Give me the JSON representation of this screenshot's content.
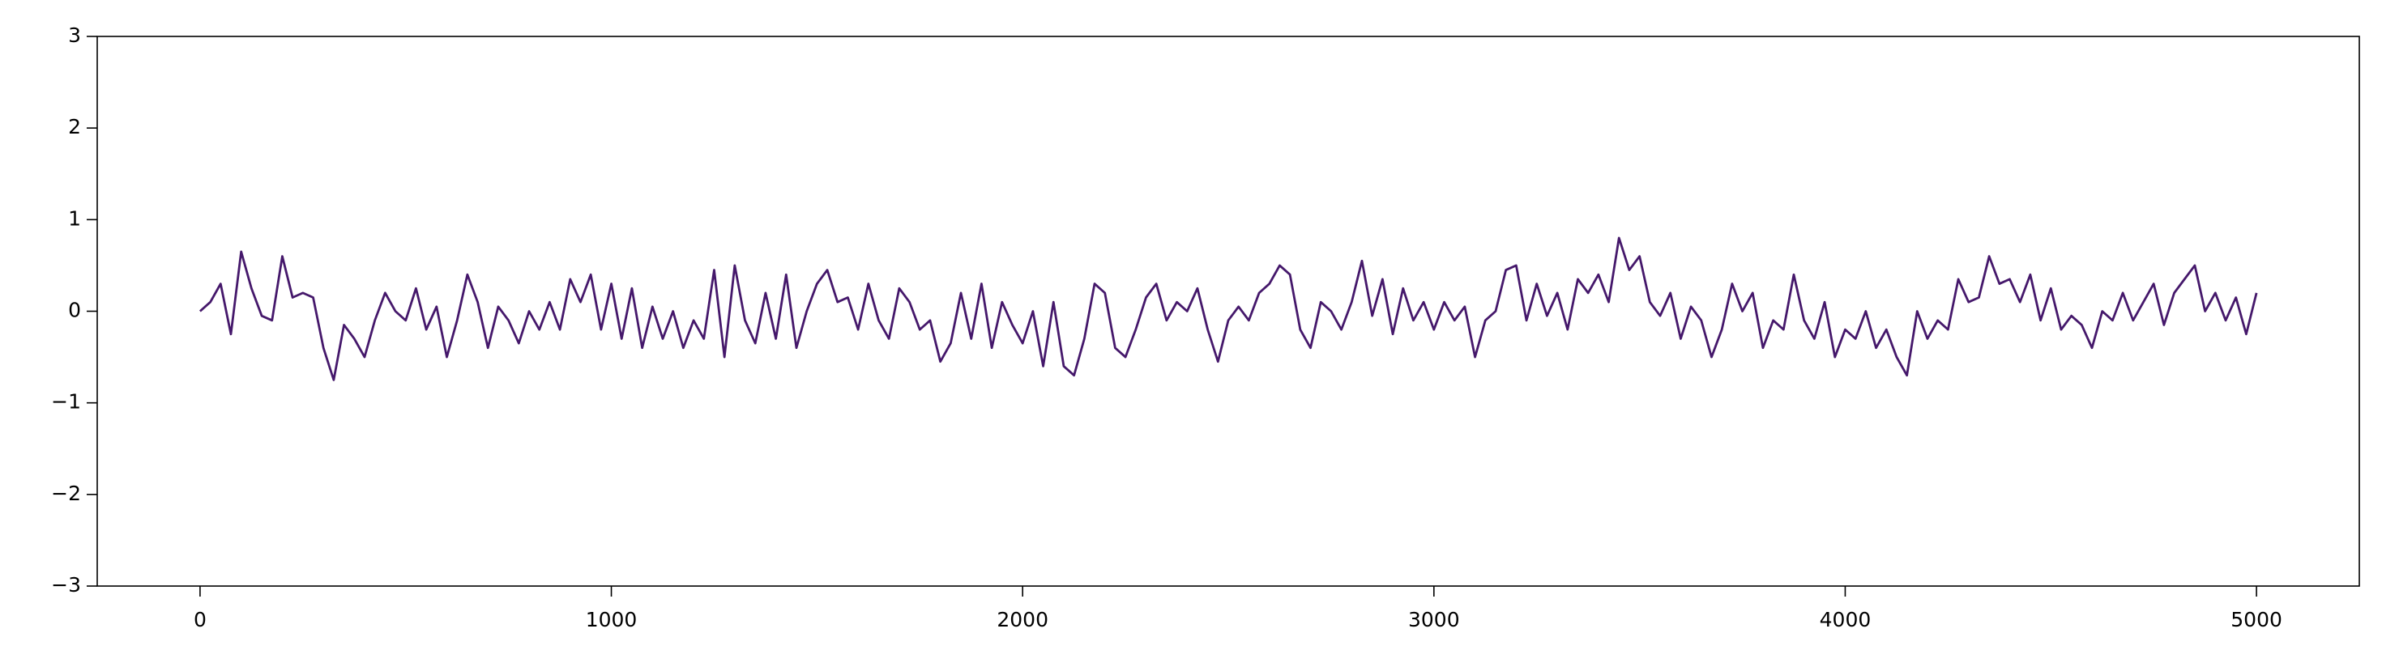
{
  "chart_data": {
    "type": "line",
    "x": [
      0,
      25,
      50,
      75,
      100,
      125,
      150,
      175,
      200,
      225,
      250,
      275,
      300,
      325,
      350,
      375,
      400,
      425,
      450,
      475,
      500,
      525,
      550,
      575,
      600,
      625,
      650,
      675,
      700,
      725,
      750,
      775,
      800,
      825,
      850,
      875,
      900,
      925,
      950,
      975,
      1000,
      1025,
      1050,
      1075,
      1100,
      1125,
      1150,
      1175,
      1200,
      1225,
      1250,
      1275,
      1300,
      1325,
      1350,
      1375,
      1400,
      1425,
      1450,
      1475,
      1500,
      1525,
      1550,
      1575,
      1600,
      1625,
      1650,
      1675,
      1700,
      1725,
      1750,
      1775,
      1800,
      1825,
      1850,
      1875,
      1900,
      1925,
      1950,
      1975,
      2000,
      2025,
      2050,
      2075,
      2100,
      2125,
      2150,
      2175,
      2200,
      2225,
      2250,
      2275,
      2300,
      2325,
      2350,
      2375,
      2400,
      2425,
      2450,
      2475,
      2500,
      2525,
      2550,
      2575,
      2600,
      2625,
      2650,
      2675,
      2700,
      2725,
      2750,
      2775,
      2800,
      2825,
      2850,
      2875,
      2900,
      2925,
      2950,
      2975,
      3000,
      3025,
      3050,
      3075,
      3100,
      3125,
      3150,
      3175,
      3200,
      3225,
      3250,
      3275,
      3300,
      3325,
      3350,
      3375,
      3400,
      3425,
      3450,
      3475,
      3500,
      3525,
      3550,
      3575,
      3600,
      3625,
      3650,
      3675,
      3700,
      3725,
      3750,
      3775,
      3800,
      3825,
      3850,
      3875,
      3900,
      3925,
      3950,
      3975,
      4000,
      4025,
      4050,
      4075,
      4100,
      4125,
      4150,
      4175,
      4200,
      4225,
      4250,
      4275,
      4300,
      4325,
      4350,
      4375,
      4400,
      4425,
      4450,
      4475,
      4500,
      4525,
      4550,
      4575,
      4600,
      4625,
      4650,
      4675,
      4700,
      4725,
      4750,
      4775,
      4800,
      4825,
      4850,
      4875,
      4900,
      4925,
      4950,
      4975,
      5000
    ],
    "series": [
      {
        "color": "#45186b",
        "values": [
          0.0,
          0.1,
          0.3,
          -0.25,
          0.65,
          0.25,
          -0.05,
          -0.1,
          0.6,
          0.15,
          0.2,
          0.15,
          -0.4,
          -0.75,
          -0.15,
          -0.3,
          -0.5,
          -0.1,
          0.2,
          0.0,
          -0.1,
          0.25,
          -0.2,
          0.05,
          -0.5,
          -0.1,
          0.4,
          0.1,
          -0.4,
          0.05,
          -0.1,
          -0.35,
          0.0,
          -0.2,
          0.1,
          -0.2,
          0.35,
          0.1,
          0.4,
          -0.2,
          0.3,
          -0.3,
          0.25,
          -0.4,
          0.05,
          -0.3,
          0.0,
          -0.4,
          -0.1,
          -0.3,
          0.45,
          -0.5,
          0.5,
          -0.1,
          -0.35,
          0.2,
          -0.3,
          0.4,
          -0.4,
          0.0,
          0.3,
          0.45,
          0.1,
          0.15,
          -0.2,
          0.3,
          -0.1,
          -0.3,
          0.25,
          0.1,
          -0.2,
          -0.1,
          -0.55,
          -0.35,
          0.2,
          -0.3,
          0.3,
          -0.4,
          0.1,
          -0.15,
          -0.35,
          0.0,
          -0.6,
          0.1,
          -0.6,
          -0.7,
          -0.3,
          0.3,
          0.2,
          -0.4,
          -0.5,
          -0.2,
          0.15,
          0.3,
          -0.1,
          0.1,
          0.0,
          0.25,
          -0.2,
          -0.55,
          -0.1,
          0.05,
          -0.1,
          0.2,
          0.3,
          0.5,
          0.4,
          -0.2,
          -0.4,
          0.1,
          0.0,
          -0.2,
          0.1,
          0.55,
          -0.05,
          0.35,
          -0.25,
          0.25,
          -0.1,
          0.1,
          -0.2,
          0.1,
          -0.1,
          0.05,
          -0.5,
          -0.1,
          0.0,
          0.45,
          0.5,
          -0.1,
          0.3,
          -0.05,
          0.2,
          -0.2,
          0.35,
          0.2,
          0.4,
          0.1,
          0.8,
          0.45,
          0.6,
          0.1,
          -0.05,
          0.2,
          -0.3,
          0.05,
          -0.1,
          -0.5,
          -0.2,
          0.3,
          0.0,
          0.2,
          -0.4,
          -0.1,
          -0.2,
          0.4,
          -0.1,
          -0.3,
          0.1,
          -0.5,
          -0.2,
          -0.3,
          0.0,
          -0.4,
          -0.2,
          -0.5,
          -0.7,
          0.0,
          -0.3,
          -0.1,
          -0.2,
          0.35,
          0.1,
          0.15,
          0.6,
          0.3,
          0.35,
          0.1,
          0.4,
          -0.1,
          0.25,
          -0.2,
          -0.05,
          -0.15,
          -0.4,
          0.0,
          -0.1,
          0.2,
          -0.1,
          0.1,
          0.3,
          -0.15,
          0.2,
          0.35,
          0.5,
          0.0,
          0.2,
          -0.1,
          0.15,
          -0.25,
          0.2
        ]
      }
    ],
    "xlim": [
      -250,
      5250
    ],
    "xticks": [
      0,
      1000,
      2000,
      3000,
      4000,
      5000
    ],
    "ylim": [
      -3,
      3
    ],
    "yticks": [
      {
        "value": -3,
        "label": "−3"
      },
      {
        "value": -2,
        "label": "−2"
      },
      {
        "value": -1,
        "label": "−1"
      },
      0,
      1,
      2,
      3
    ]
  }
}
